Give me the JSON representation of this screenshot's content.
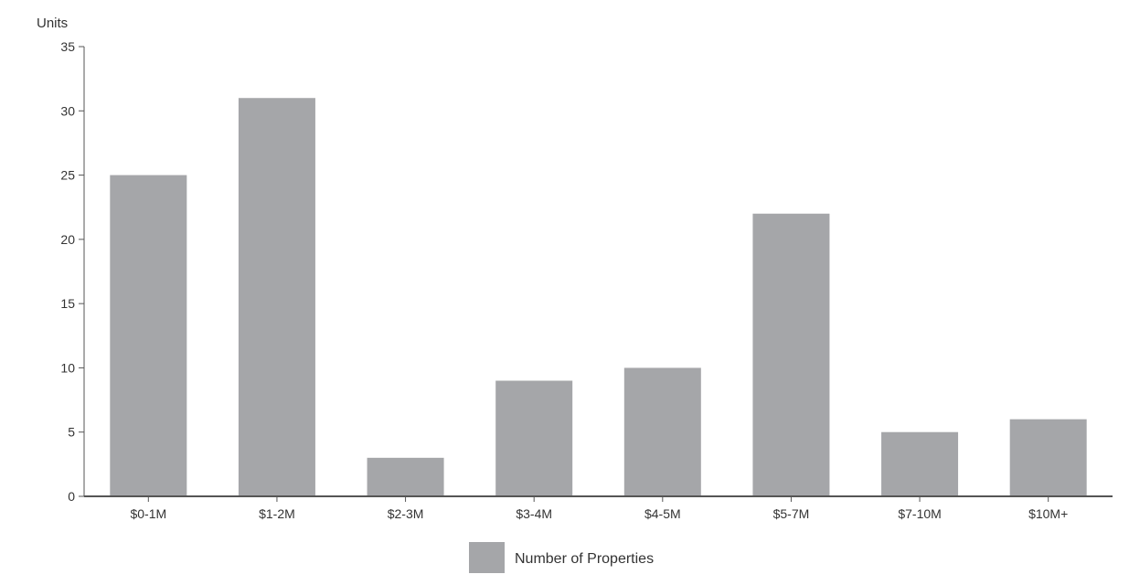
{
  "chart_data": {
    "type": "bar",
    "title": "",
    "xlabel": "",
    "ylabel": "Units",
    "categories": [
      "$0-1M",
      "$1-2M",
      "$2-3M",
      "$3-4M",
      "$4-5M",
      "$5-7M",
      "$7-10M",
      "$10M+"
    ],
    "series": [
      {
        "name": "Number of Properties",
        "values": [
          25,
          31,
          3,
          9,
          10,
          22,
          5,
          6
        ],
        "color": "#a5a6a9"
      }
    ],
    "ylim": [
      0,
      35
    ],
    "yticks": [
      0,
      5,
      10,
      15,
      20,
      25,
      30,
      35
    ],
    "grid": false,
    "legend_position": "bottom-center"
  }
}
